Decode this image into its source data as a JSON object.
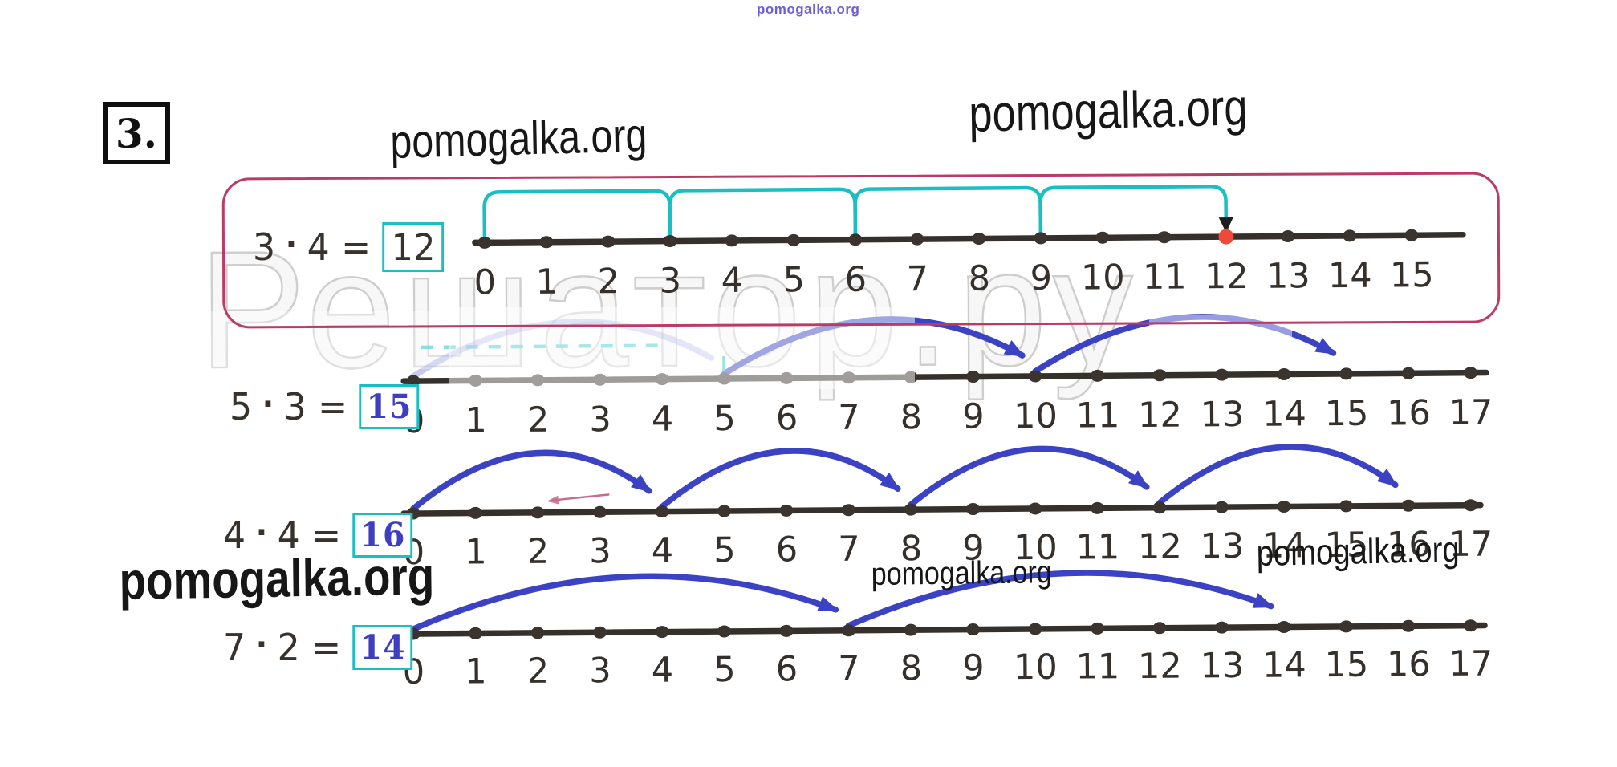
{
  "watermarks": {
    "top_small": "pomogalka.org",
    "top_left": "pomogalka.org",
    "top_right": "pomogalka.org",
    "mid_left": "pomogalka.org",
    "mid_center": "pomogalka.org",
    "mid_right": "pomogalka.org",
    "giant_background": "Решатор.ру"
  },
  "exercise_number": "3.",
  "colors": {
    "ink": "#35302b",
    "teal": "#19bfc3",
    "pink_frame": "#bc3a66",
    "jump_blue": "#3b43c4",
    "jump_blue_faded": "rgba(105,115,215,0.38)",
    "answer_pen_blue": "#3e3ec2",
    "result_red_dot": "#ee4a39",
    "watermark_blue": "#6a5fd8"
  },
  "problems": [
    {
      "id": "3x4",
      "equation": {
        "factor_a": "3",
        "operator": "·",
        "factor_b": "4",
        "equals": "=",
        "answer": "12"
      },
      "answer_ink": "printed-dark",
      "number_line": {
        "tick_labels": [
          "0",
          "1",
          "2",
          "3",
          "4",
          "5",
          "6",
          "7",
          "8",
          "9",
          "10",
          "11",
          "12",
          "13",
          "14",
          "15"
        ],
        "jump_size": 3,
        "jump_count": 4,
        "jump_style": "teal-bracket",
        "jumps": [
          {
            "from": 0,
            "to": 3
          },
          {
            "from": 3,
            "to": 6
          },
          {
            "from": 6,
            "to": 9
          },
          {
            "from": 9,
            "to": 12
          }
        ],
        "result_marker": {
          "position": 12,
          "type": "red-dot-with-black-arrow"
        }
      }
    },
    {
      "id": "5x3",
      "equation": {
        "factor_a": "5",
        "operator": "·",
        "factor_b": "3",
        "equals": "=",
        "answer": "15"
      },
      "answer_ink": "pen-blue",
      "number_line": {
        "tick_labels": [
          "0",
          "1",
          "2",
          "3",
          "4",
          "5",
          "6",
          "7",
          "8",
          "9",
          "10",
          "11",
          "12",
          "13",
          "14",
          "15",
          "16",
          "17"
        ],
        "jump_size": 5,
        "jump_count": 3,
        "jump_style": "blue-arc",
        "jumps": [
          {
            "from": 0,
            "to": 5,
            "faded": true
          },
          {
            "from": 5,
            "to": 10
          },
          {
            "from": 10,
            "to": 15
          }
        ],
        "erased_jump_hint": true
      }
    },
    {
      "id": "4x4",
      "equation": {
        "factor_a": "4",
        "operator": "·",
        "factor_b": "4",
        "equals": "=",
        "answer": "16"
      },
      "answer_ink": "pen-blue",
      "number_line": {
        "tick_labels": [
          "0",
          "1",
          "2",
          "3",
          "4",
          "5",
          "6",
          "7",
          "8",
          "9",
          "10",
          "11",
          "12",
          "13",
          "14",
          "15",
          "16",
          "17"
        ],
        "jump_size": 4,
        "jump_count": 4,
        "jump_style": "blue-arc",
        "jumps": [
          {
            "from": 0,
            "to": 4
          },
          {
            "from": 4,
            "to": 8
          },
          {
            "from": 8,
            "to": 12
          },
          {
            "from": 12,
            "to": 16
          }
        ]
      }
    },
    {
      "id": "7x2",
      "equation": {
        "factor_a": "7",
        "operator": "·",
        "factor_b": "2",
        "equals": "=",
        "answer": "14"
      },
      "answer_ink": "pen-blue",
      "number_line": {
        "tick_labels": [
          "0",
          "1",
          "2",
          "3",
          "4",
          "5",
          "6",
          "7",
          "8",
          "9",
          "10",
          "11",
          "12",
          "13",
          "14",
          "15",
          "16",
          "17"
        ],
        "jump_size": 7,
        "jump_count": 2,
        "jump_style": "blue-arc",
        "jumps": [
          {
            "from": 0,
            "to": 7
          },
          {
            "from": 7,
            "to": 14
          }
        ]
      }
    }
  ]
}
